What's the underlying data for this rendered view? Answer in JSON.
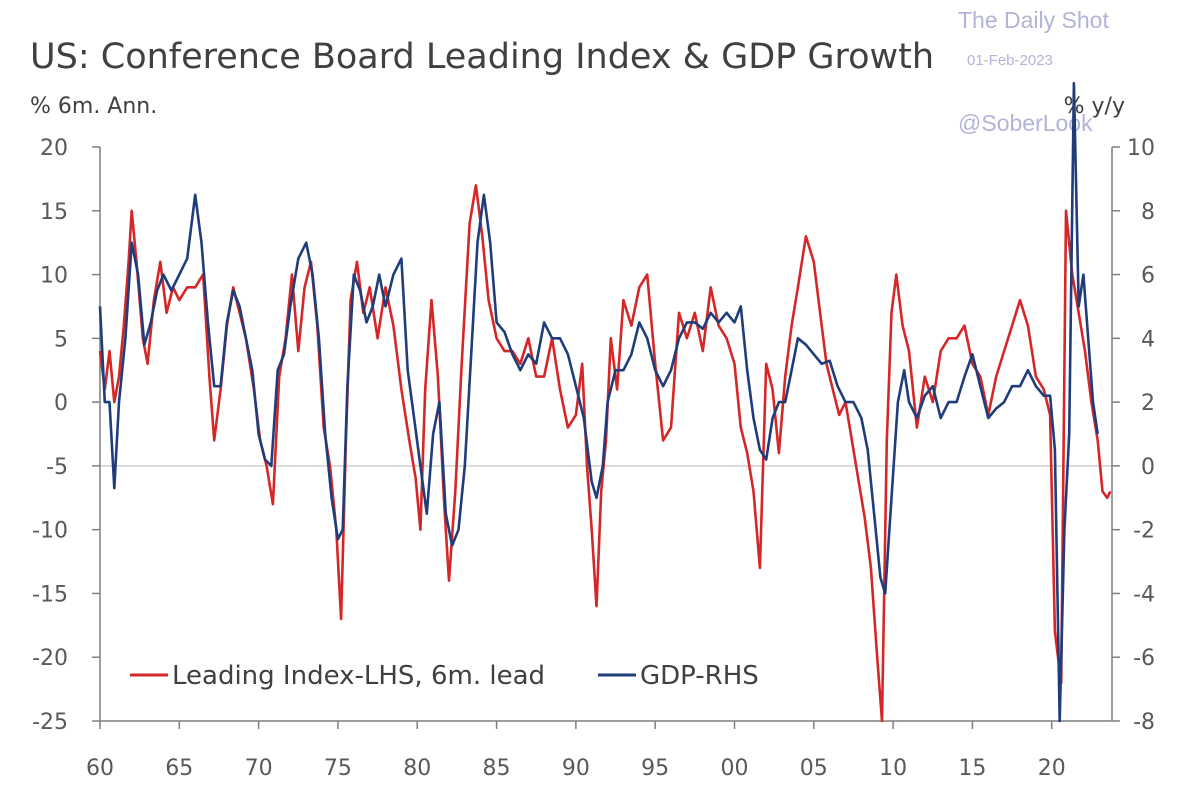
{
  "watermark": {
    "line1": "The Daily Shot",
    "line2": "01-Feb-2023",
    "line3": "@SoberLook"
  },
  "chart_data": {
    "type": "line",
    "title": "US: Conference Board Leading Index & GDP Growth",
    "left_axis_unit": "% 6m. Ann.",
    "right_axis_unit": "% y/y",
    "x_range": [
      1960,
      2023.8
    ],
    "x_ticks": [
      1960,
      1965,
      1970,
      1975,
      1980,
      1985,
      1990,
      1995,
      2000,
      2005,
      2010,
      2015,
      2020
    ],
    "x_tick_labels": [
      "60",
      "65",
      "70",
      "75",
      "80",
      "85",
      "90",
      "95",
      "00",
      "05",
      "10",
      "15",
      "20"
    ],
    "y_left_range": [
      -25,
      20
    ],
    "y_left_ticks": [
      20,
      15,
      10,
      5,
      0,
      -5,
      -10,
      -15,
      -20,
      -25
    ],
    "y_right_range": [
      -8,
      10
    ],
    "y_right_ticks": [
      10,
      8,
      6,
      4,
      2,
      0,
      -2,
      -4,
      -6,
      -8
    ],
    "reference_line_left": -5,
    "grid": false,
    "legend_position": "bottom-left",
    "colors": {
      "leading": "#d62728",
      "gdp": "#1f3d7a"
    },
    "series": [
      {
        "name": "Leading Index-LHS, 6m. lead",
        "axis": "left",
        "color": "#d62728",
        "points": [
          [
            1960.0,
            4
          ],
          [
            1960.3,
            1
          ],
          [
            1960.6,
            4
          ],
          [
            1960.9,
            0
          ],
          [
            1961.2,
            2
          ],
          [
            1961.5,
            6
          ],
          [
            1961.8,
            11
          ],
          [
            1962.0,
            15
          ],
          [
            1962.3,
            11
          ],
          [
            1962.7,
            5
          ],
          [
            1963.0,
            3
          ],
          [
            1963.4,
            8
          ],
          [
            1963.8,
            11
          ],
          [
            1964.2,
            7
          ],
          [
            1964.6,
            9
          ],
          [
            1965.0,
            8
          ],
          [
            1965.5,
            9
          ],
          [
            1966.0,
            9
          ],
          [
            1966.5,
            10
          ],
          [
            1966.9,
            2
          ],
          [
            1967.2,
            -3
          ],
          [
            1967.6,
            1
          ],
          [
            1968.0,
            6
          ],
          [
            1968.4,
            9
          ],
          [
            1968.8,
            7
          ],
          [
            1969.2,
            5
          ],
          [
            1969.7,
            1
          ],
          [
            1970.1,
            -3
          ],
          [
            1970.5,
            -5
          ],
          [
            1970.9,
            -8
          ],
          [
            1971.3,
            2
          ],
          [
            1971.7,
            5
          ],
          [
            1972.1,
            10
          ],
          [
            1972.5,
            4
          ],
          [
            1972.9,
            9
          ],
          [
            1973.3,
            11
          ],
          [
            1973.7,
            6
          ],
          [
            1974.1,
            -2
          ],
          [
            1974.5,
            -5
          ],
          [
            1974.9,
            -10
          ],
          [
            1975.2,
            -17
          ],
          [
            1975.5,
            -3
          ],
          [
            1975.8,
            8
          ],
          [
            1976.2,
            11
          ],
          [
            1976.6,
            7
          ],
          [
            1977.0,
            9
          ],
          [
            1977.5,
            5
          ],
          [
            1978.0,
            9
          ],
          [
            1978.5,
            6
          ],
          [
            1979.0,
            1
          ],
          [
            1979.5,
            -3
          ],
          [
            1979.9,
            -6
          ],
          [
            1980.2,
            -10
          ],
          [
            1980.5,
            1
          ],
          [
            1980.9,
            8
          ],
          [
            1981.3,
            2
          ],
          [
            1981.7,
            -8
          ],
          [
            1982.0,
            -14
          ],
          [
            1982.4,
            -7
          ],
          [
            1982.8,
            3
          ],
          [
            1983.3,
            14
          ],
          [
            1983.7,
            17
          ],
          [
            1984.1,
            13
          ],
          [
            1984.5,
            8
          ],
          [
            1985.0,
            5
          ],
          [
            1985.5,
            4
          ],
          [
            1986.0,
            4
          ],
          [
            1986.5,
            3
          ],
          [
            1987.0,
            5
          ],
          [
            1987.5,
            2
          ],
          [
            1988.0,
            2
          ],
          [
            1988.5,
            5
          ],
          [
            1989.0,
            1
          ],
          [
            1989.5,
            -2
          ],
          [
            1990.0,
            -1
          ],
          [
            1990.4,
            3
          ],
          [
            1990.7,
            -5
          ],
          [
            1991.0,
            -10
          ],
          [
            1991.3,
            -16
          ],
          [
            1991.6,
            -7
          ],
          [
            1991.9,
            -3
          ],
          [
            1992.2,
            5
          ],
          [
            1992.6,
            1
          ],
          [
            1993.0,
            8
          ],
          [
            1993.5,
            6
          ],
          [
            1994.0,
            9
          ],
          [
            1994.5,
            10
          ],
          [
            1995.0,
            3
          ],
          [
            1995.5,
            -3
          ],
          [
            1996.0,
            -2
          ],
          [
            1996.5,
            7
          ],
          [
            1997.0,
            5
          ],
          [
            1997.5,
            7
          ],
          [
            1998.0,
            4
          ],
          [
            1998.5,
            9
          ],
          [
            1999.0,
            6
          ],
          [
            1999.5,
            5
          ],
          [
            2000.0,
            3
          ],
          [
            2000.4,
            -2
          ],
          [
            2000.8,
            -4
          ],
          [
            2001.2,
            -7
          ],
          [
            2001.6,
            -13
          ],
          [
            2002.0,
            3
          ],
          [
            2002.4,
            1
          ],
          [
            2002.8,
            -4
          ],
          [
            2003.2,
            2
          ],
          [
            2003.6,
            6
          ],
          [
            2004.0,
            9
          ],
          [
            2004.5,
            13
          ],
          [
            2005.0,
            11
          ],
          [
            2005.4,
            7
          ],
          [
            2005.8,
            3
          ],
          [
            2006.2,
            1
          ],
          [
            2006.6,
            -1
          ],
          [
            2007.0,
            0
          ],
          [
            2007.4,
            -3
          ],
          [
            2007.8,
            -6
          ],
          [
            2008.2,
            -9
          ],
          [
            2008.6,
            -13
          ],
          [
            2009.0,
            -20
          ],
          [
            2009.3,
            -25
          ],
          [
            2009.6,
            -3
          ],
          [
            2009.9,
            7
          ],
          [
            2010.2,
            10
          ],
          [
            2010.6,
            6
          ],
          [
            2011.0,
            4
          ],
          [
            2011.5,
            -2
          ],
          [
            2012.0,
            2
          ],
          [
            2012.5,
            0
          ],
          [
            2013.0,
            4
          ],
          [
            2013.5,
            5
          ],
          [
            2014.0,
            5
          ],
          [
            2014.5,
            6
          ],
          [
            2015.0,
            3
          ],
          [
            2015.5,
            2
          ],
          [
            2016.0,
            -1
          ],
          [
            2016.5,
            2
          ],
          [
            2017.0,
            4
          ],
          [
            2017.5,
            6
          ],
          [
            2018.0,
            8
          ],
          [
            2018.5,
            6
          ],
          [
            2019.0,
            2
          ],
          [
            2019.5,
            1
          ],
          [
            2019.9,
            -1
          ],
          [
            2020.2,
            -18
          ],
          [
            2020.6,
            -22
          ],
          [
            2020.9,
            15
          ],
          [
            2021.3,
            10
          ],
          [
            2021.7,
            7
          ],
          [
            2022.1,
            4
          ],
          [
            2022.5,
            0
          ],
          [
            2022.9,
            -3
          ],
          [
            2023.2,
            -7
          ],
          [
            2023.5,
            -7.5
          ],
          [
            2023.7,
            -7
          ]
        ]
      },
      {
        "name": "GDP-RHS",
        "axis": "right",
        "color": "#1f3d7a",
        "points": [
          [
            1960.0,
            5
          ],
          [
            1960.3,
            2
          ],
          [
            1960.6,
            2
          ],
          [
            1960.9,
            -0.7
          ],
          [
            1961.2,
            2
          ],
          [
            1961.6,
            4
          ],
          [
            1962.0,
            7
          ],
          [
            1962.4,
            6
          ],
          [
            1962.8,
            3.8
          ],
          [
            1963.2,
            4.5
          ],
          [
            1963.6,
            5.5
          ],
          [
            1964.0,
            6
          ],
          [
            1964.5,
            5.5
          ],
          [
            1965.0,
            6
          ],
          [
            1965.5,
            6.5
          ],
          [
            1966.0,
            8.5
          ],
          [
            1966.4,
            7
          ],
          [
            1966.8,
            4.5
          ],
          [
            1967.2,
            2.5
          ],
          [
            1967.6,
            2.5
          ],
          [
            1968.0,
            4.5
          ],
          [
            1968.4,
            5.5
          ],
          [
            1968.8,
            5
          ],
          [
            1969.2,
            4
          ],
          [
            1969.6,
            3
          ],
          [
            1970.0,
            1
          ],
          [
            1970.4,
            0.2
          ],
          [
            1970.8,
            0
          ],
          [
            1971.2,
            3
          ],
          [
            1971.6,
            3.5
          ],
          [
            1972.0,
            5
          ],
          [
            1972.5,
            6.5
          ],
          [
            1973.0,
            7
          ],
          [
            1973.4,
            6
          ],
          [
            1973.8,
            4
          ],
          [
            1974.2,
            1
          ],
          [
            1974.6,
            -1
          ],
          [
            1975.0,
            -2.3
          ],
          [
            1975.3,
            -2
          ],
          [
            1975.6,
            2.5
          ],
          [
            1976.0,
            6
          ],
          [
            1976.4,
            5.5
          ],
          [
            1976.8,
            4.5
          ],
          [
            1977.2,
            5
          ],
          [
            1977.6,
            6
          ],
          [
            1978.0,
            5
          ],
          [
            1978.5,
            6
          ],
          [
            1979.0,
            6.5
          ],
          [
            1979.4,
            3
          ],
          [
            1979.8,
            1.5
          ],
          [
            1980.2,
            0
          ],
          [
            1980.6,
            -1.5
          ],
          [
            1981.0,
            1
          ],
          [
            1981.4,
            2
          ],
          [
            1981.8,
            -1.5
          ],
          [
            1982.2,
            -2.5
          ],
          [
            1982.6,
            -2
          ],
          [
            1983.0,
            0
          ],
          [
            1983.4,
            3.5
          ],
          [
            1983.8,
            7
          ],
          [
            1984.2,
            8.5
          ],
          [
            1984.6,
            7
          ],
          [
            1985.0,
            4.5
          ],
          [
            1985.5,
            4.2
          ],
          [
            1986.0,
            3.5
          ],
          [
            1986.5,
            3
          ],
          [
            1987.0,
            3.5
          ],
          [
            1987.5,
            3.2
          ],
          [
            1988.0,
            4.5
          ],
          [
            1988.5,
            4
          ],
          [
            1989.0,
            4
          ],
          [
            1989.5,
            3.5
          ],
          [
            1990.0,
            2.5
          ],
          [
            1990.5,
            1.5
          ],
          [
            1991.0,
            -0.5
          ],
          [
            1991.3,
            -1
          ],
          [
            1991.7,
            0
          ],
          [
            1992.0,
            2
          ],
          [
            1992.5,
            3
          ],
          [
            1993.0,
            3
          ],
          [
            1993.5,
            3.5
          ],
          [
            1994.0,
            4.5
          ],
          [
            1994.5,
            4
          ],
          [
            1995.0,
            3
          ],
          [
            1995.5,
            2.5
          ],
          [
            1996.0,
            3
          ],
          [
            1996.5,
            4
          ],
          [
            1997.0,
            4.5
          ],
          [
            1997.5,
            4.5
          ],
          [
            1998.0,
            4.3
          ],
          [
            1998.5,
            4.8
          ],
          [
            1999.0,
            4.5
          ],
          [
            1999.5,
            4.8
          ],
          [
            2000.0,
            4.5
          ],
          [
            2000.4,
            5
          ],
          [
            2000.8,
            3
          ],
          [
            2001.2,
            1.5
          ],
          [
            2001.6,
            0.5
          ],
          [
            2002.0,
            0.2
          ],
          [
            2002.4,
            1.5
          ],
          [
            2002.8,
            2
          ],
          [
            2003.2,
            2
          ],
          [
            2003.6,
            3
          ],
          [
            2004.0,
            4
          ],
          [
            2004.5,
            3.8
          ],
          [
            2005.0,
            3.5
          ],
          [
            2005.5,
            3.2
          ],
          [
            2006.0,
            3.3
          ],
          [
            2006.5,
            2.5
          ],
          [
            2007.0,
            2
          ],
          [
            2007.5,
            2
          ],
          [
            2008.0,
            1.5
          ],
          [
            2008.4,
            0.5
          ],
          [
            2008.8,
            -1.5
          ],
          [
            2009.2,
            -3.5
          ],
          [
            2009.5,
            -4
          ],
          [
            2009.9,
            -1
          ],
          [
            2010.3,
            2
          ],
          [
            2010.7,
            3
          ],
          [
            2011.0,
            2
          ],
          [
            2011.5,
            1.5
          ],
          [
            2012.0,
            2.2
          ],
          [
            2012.5,
            2.5
          ],
          [
            2013.0,
            1.5
          ],
          [
            2013.5,
            2
          ],
          [
            2014.0,
            2
          ],
          [
            2014.5,
            2.8
          ],
          [
            2015.0,
            3.5
          ],
          [
            2015.5,
            2.5
          ],
          [
            2016.0,
            1.5
          ],
          [
            2016.5,
            1.8
          ],
          [
            2017.0,
            2
          ],
          [
            2017.5,
            2.5
          ],
          [
            2018.0,
            2.5
          ],
          [
            2018.5,
            3
          ],
          [
            2019.0,
            2.5
          ],
          [
            2019.5,
            2.2
          ],
          [
            2019.9,
            2.2
          ],
          [
            2020.2,
            0.5
          ],
          [
            2020.5,
            -8
          ],
          [
            2020.8,
            -2
          ],
          [
            2021.1,
            1
          ],
          [
            2021.4,
            12
          ],
          [
            2021.7,
            5
          ],
          [
            2022.0,
            6
          ],
          [
            2022.3,
            4
          ],
          [
            2022.6,
            2
          ],
          [
            2022.9,
            1
          ]
        ]
      }
    ]
  }
}
